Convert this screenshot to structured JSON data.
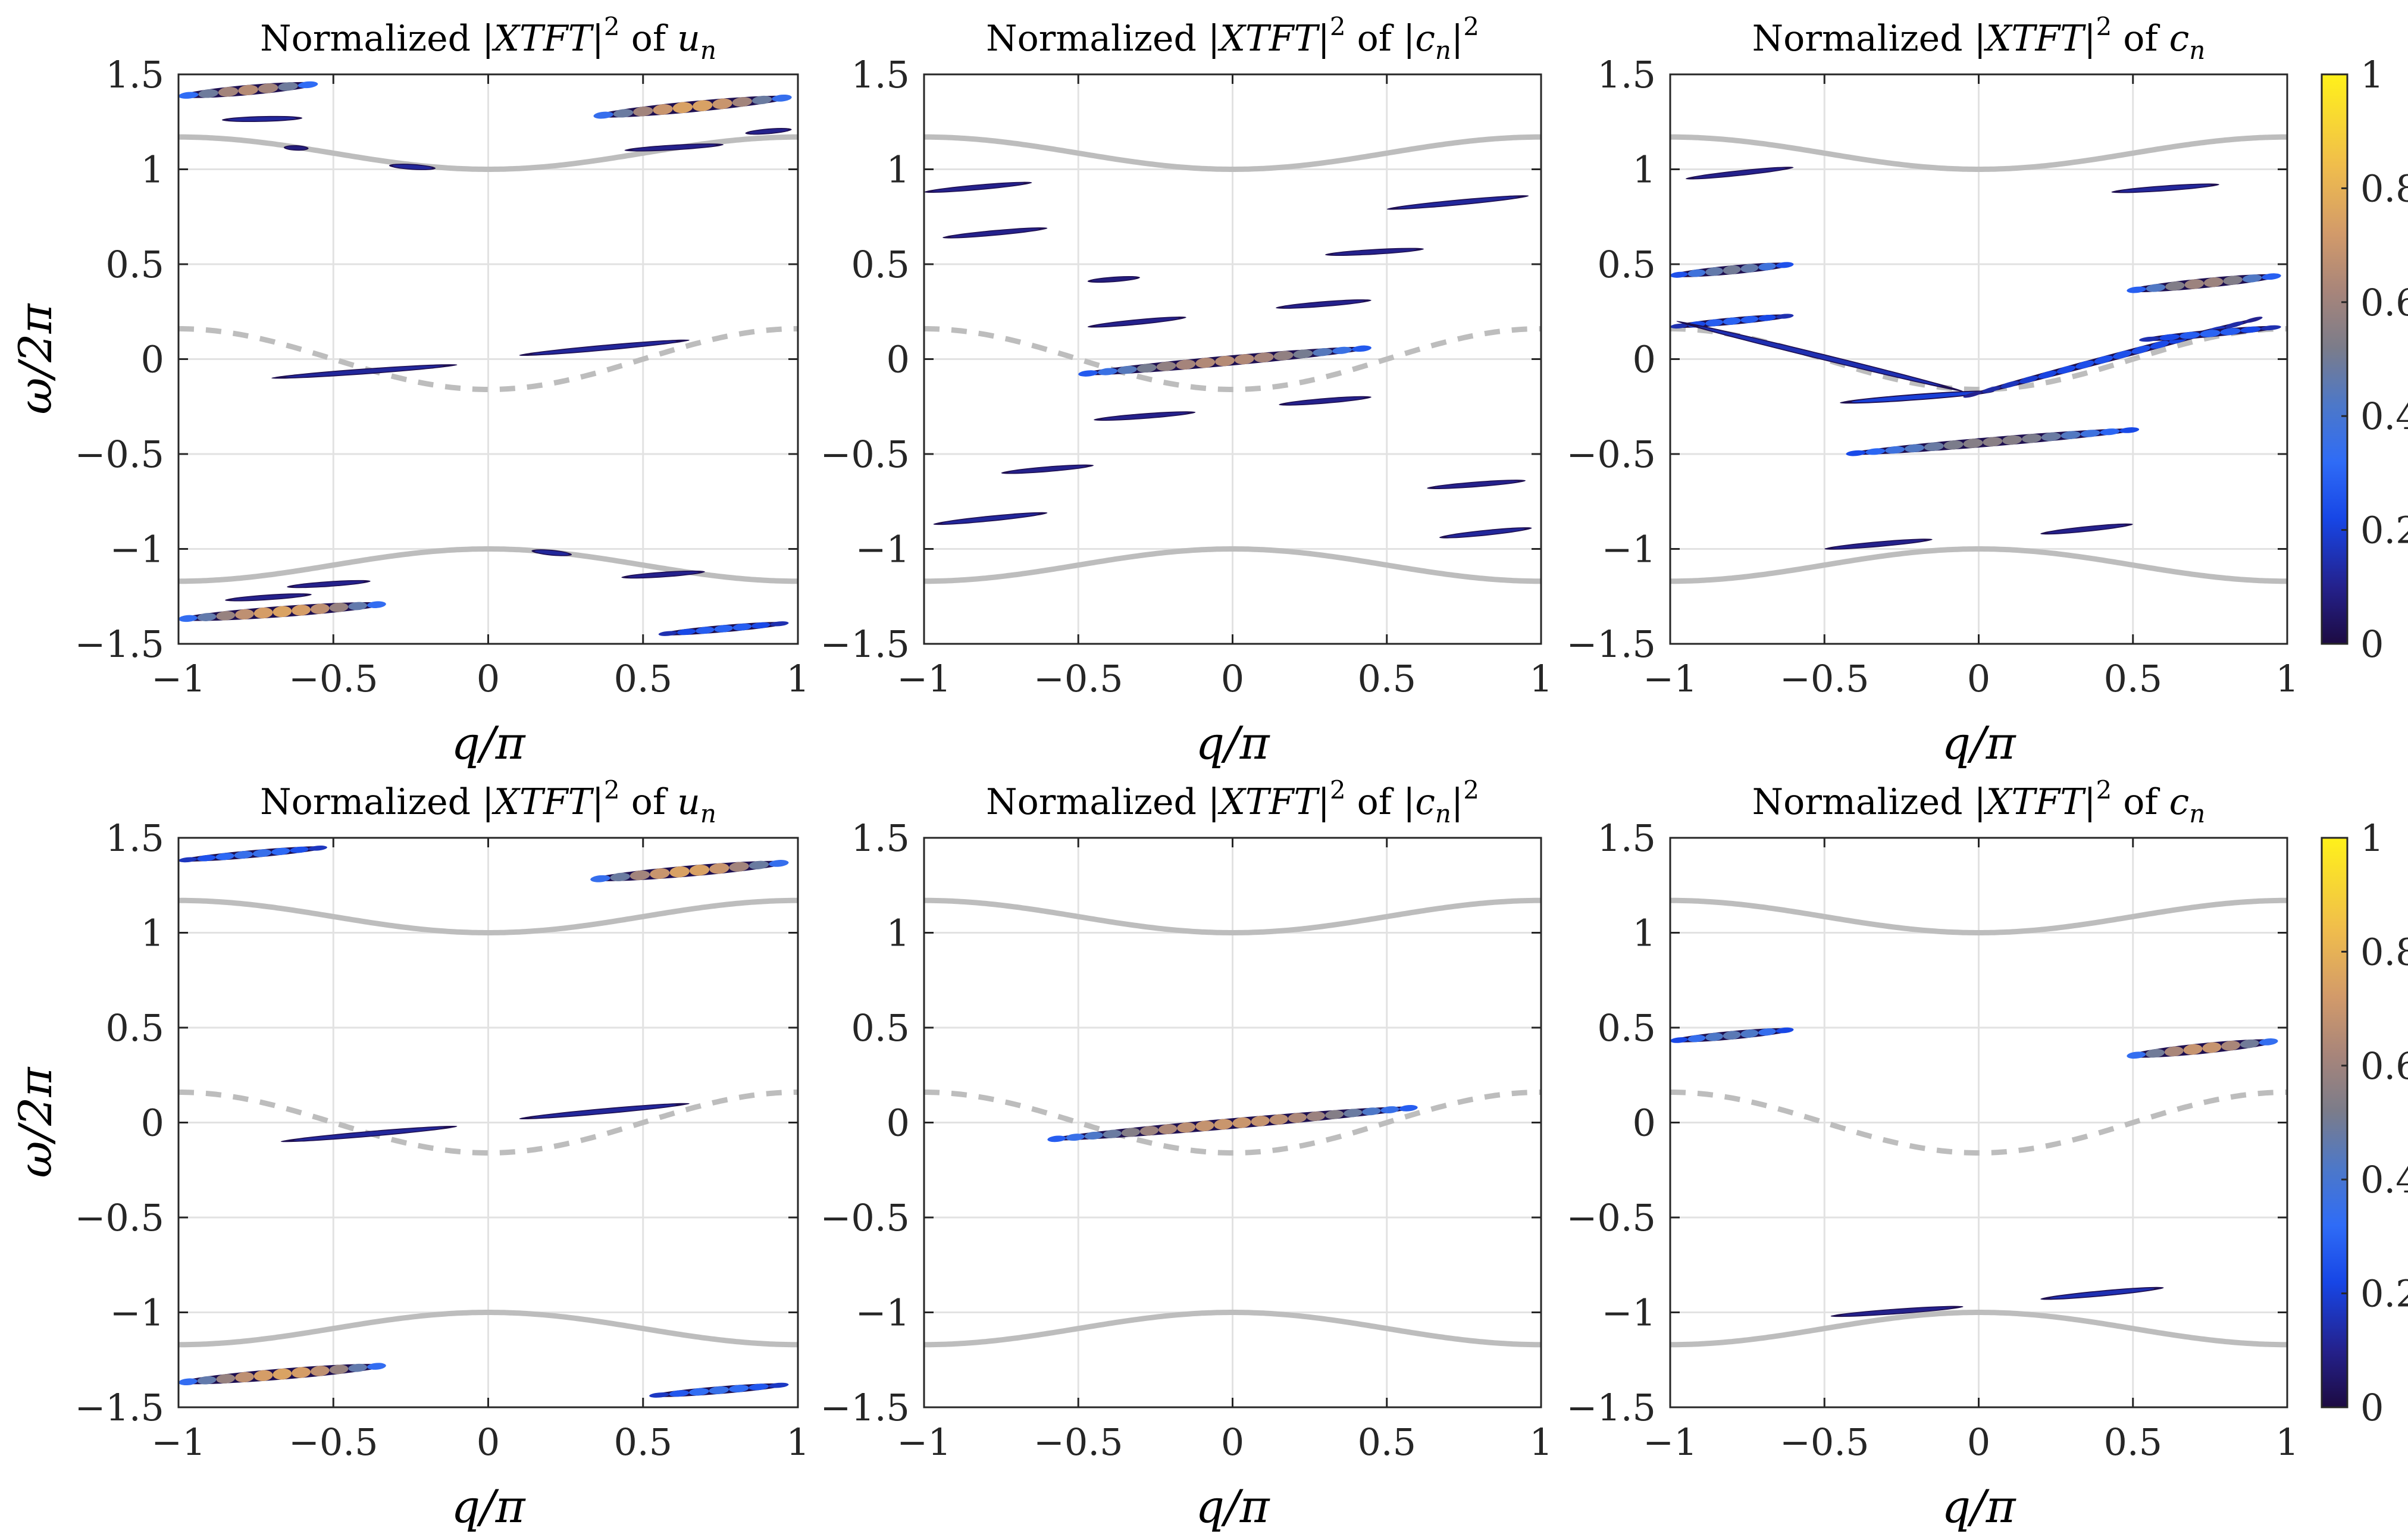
{
  "chart_data": [
    {
      "type": "heatmap",
      "row": 0,
      "col": 0,
      "title": {
        "prefix": "Normalized",
        "expr": "|XTFT|",
        "sup": "2",
        "of": "of",
        "var": "u",
        "sub": "n",
        "pre_bar": false
      },
      "xlabel": "q/π",
      "ylabel": "ω/2π",
      "xlim": [
        -1,
        1
      ],
      "ylim": [
        -1.5,
        1.5
      ],
      "xticks": [
        "−1",
        "−0.5",
        "0",
        "0.5",
        "1"
      ],
      "yticks": [
        "−1.5",
        "−1",
        "−0.5",
        "0",
        "0.5",
        "1",
        "1.5"
      ],
      "grid": true,
      "streaks": [
        {
          "x1": -1.0,
          "y1": 1.385,
          "x2": -0.55,
          "y2": 1.45,
          "i": 0.65
        },
        {
          "x1": -0.86,
          "y1": 1.26,
          "x2": -0.6,
          "y2": 1.27,
          "i": 0.12
        },
        {
          "x1": -0.66,
          "y1": 1.115,
          "x2": -0.58,
          "y2": 1.11,
          "i": 0.08
        },
        {
          "x1": -0.32,
          "y1": 1.02,
          "x2": -0.17,
          "y2": 1.005,
          "i": 0.12
        },
        {
          "x1": 0.34,
          "y1": 1.28,
          "x2": 0.98,
          "y2": 1.38,
          "i": 0.75
        },
        {
          "x1": 0.44,
          "y1": 1.1,
          "x2": 0.76,
          "y2": 1.13,
          "i": 0.1
        },
        {
          "x1": 0.83,
          "y1": 1.19,
          "x2": 0.98,
          "y2": 1.21,
          "i": 0.1
        },
        {
          "x1": -0.7,
          "y1": -0.1,
          "x2": -0.1,
          "y2": -0.03,
          "i": 0.12
        },
        {
          "x1": 0.1,
          "y1": 0.02,
          "x2": 0.65,
          "y2": 0.1,
          "i": 0.12
        },
        {
          "x1": -1.0,
          "y1": -1.37,
          "x2": -0.33,
          "y2": -1.29,
          "i": 0.75
        },
        {
          "x1": -0.65,
          "y1": -1.2,
          "x2": -0.38,
          "y2": -1.17,
          "i": 0.1
        },
        {
          "x1": -0.85,
          "y1": -1.27,
          "x2": -0.57,
          "y2": -1.24,
          "i": 0.1
        },
        {
          "x1": 0.14,
          "y1": -1.01,
          "x2": 0.27,
          "y2": -1.03,
          "i": 0.12
        },
        {
          "x1": 0.43,
          "y1": -1.15,
          "x2": 0.7,
          "y2": -1.12,
          "i": 0.1
        },
        {
          "x1": 0.55,
          "y1": -1.45,
          "x2": 0.97,
          "y2": -1.39,
          "i": 0.3
        }
      ]
    },
    {
      "type": "heatmap",
      "row": 0,
      "col": 1,
      "title": {
        "prefix": "Normalized",
        "expr": "|XTFT|",
        "sup": "2",
        "of": "of",
        "var": "c",
        "sub": "n",
        "pre_bar": true
      },
      "xlabel": "q/π",
      "ylabel": "",
      "xlim": [
        -1,
        1
      ],
      "ylim": [
        -1.5,
        1.5
      ],
      "xticks": [
        "−1",
        "−0.5",
        "0",
        "0.5",
        "1"
      ],
      "yticks": [
        "−1.5",
        "−1",
        "−0.5",
        "0",
        "0.5",
        "1",
        "1.5"
      ],
      "grid": true,
      "streaks": [
        {
          "x1": -1.0,
          "y1": 0.88,
          "x2": -0.65,
          "y2": 0.93,
          "i": 0.1
        },
        {
          "x1": -0.94,
          "y1": 0.64,
          "x2": -0.6,
          "y2": 0.69,
          "i": 0.1
        },
        {
          "x1": -0.47,
          "y1": 0.41,
          "x2": -0.3,
          "y2": 0.43,
          "i": 0.08
        },
        {
          "x1": -0.47,
          "y1": 0.17,
          "x2": -0.15,
          "y2": 0.22,
          "i": 0.1
        },
        {
          "x1": -0.5,
          "y1": -0.08,
          "x2": 0.45,
          "y2": 0.06,
          "i": 0.65
        },
        {
          "x1": -0.45,
          "y1": -0.32,
          "x2": -0.12,
          "y2": -0.28,
          "i": 0.1
        },
        {
          "x1": 0.15,
          "y1": -0.24,
          "x2": 0.45,
          "y2": -0.2,
          "i": 0.1
        },
        {
          "x1": 0.14,
          "y1": 0.27,
          "x2": 0.45,
          "y2": 0.31,
          "i": 0.1
        },
        {
          "x1": 0.3,
          "y1": 0.55,
          "x2": 0.62,
          "y2": 0.58,
          "i": 0.1
        },
        {
          "x1": 0.5,
          "y1": 0.79,
          "x2": 0.96,
          "y2": 0.86,
          "i": 0.12
        },
        {
          "x1": -0.75,
          "y1": -0.6,
          "x2": -0.45,
          "y2": -0.56,
          "i": 0.1
        },
        {
          "x1": -0.97,
          "y1": -0.87,
          "x2": -0.6,
          "y2": -0.81,
          "i": 0.12
        },
        {
          "x1": 0.63,
          "y1": -0.68,
          "x2": 0.95,
          "y2": -0.64,
          "i": 0.1
        },
        {
          "x1": 0.67,
          "y1": -0.94,
          "x2": 0.97,
          "y2": -0.89,
          "i": 0.12
        }
      ]
    },
    {
      "type": "heatmap",
      "row": 0,
      "col": 2,
      "title": {
        "prefix": "Normalized",
        "expr": "|XTFT|",
        "sup": "2",
        "of": "of",
        "var": "c",
        "sub": "n",
        "pre_bar": false
      },
      "xlabel": "q/π",
      "ylabel": "",
      "xlim": [
        -1,
        1
      ],
      "ylim": [
        -1.5,
        1.5
      ],
      "xticks": [
        "−1",
        "−0.5",
        "0",
        "0.5",
        "1"
      ],
      "yticks": [
        "−1.5",
        "−1",
        "−0.5",
        "0",
        "0.5",
        "1",
        "1.5"
      ],
      "grid": true,
      "colorbar": {
        "ticks": [
          "0",
          "0.2",
          "0.4",
          "0.6",
          "0.8",
          "1"
        ],
        "colormap": "parula-dark"
      },
      "streaks": [
        {
          "x1": -0.95,
          "y1": 0.95,
          "x2": -0.6,
          "y2": 1.01,
          "i": 0.1
        },
        {
          "x1": -1.0,
          "y1": 0.44,
          "x2": -0.6,
          "y2": 0.5,
          "i": 0.5
        },
        {
          "x1": -1.0,
          "y1": 0.17,
          "x2": -0.6,
          "y2": 0.23,
          "i": 0.3
        },
        {
          "x1": -0.98,
          "y1": 0.2,
          "x2": -0.05,
          "y2": -0.17,
          "i": 0.15
        },
        {
          "x1": -0.45,
          "y1": -0.23,
          "x2": 0.05,
          "y2": -0.17,
          "i": 0.2
        },
        {
          "x1": -0.05,
          "y1": -0.2,
          "x2": 0.92,
          "y2": 0.22,
          "i": 0.25
        },
        {
          "x1": -0.43,
          "y1": -0.5,
          "x2": 0.52,
          "y2": -0.37,
          "i": 0.55
        },
        {
          "x1": -0.5,
          "y1": -1.0,
          "x2": -0.15,
          "y2": -0.95,
          "i": 0.1
        },
        {
          "x1": 0.2,
          "y1": -0.92,
          "x2": 0.5,
          "y2": -0.87,
          "i": 0.1
        },
        {
          "x1": 0.43,
          "y1": 0.88,
          "x2": 0.78,
          "y2": 0.92,
          "i": 0.12
        },
        {
          "x1": 0.48,
          "y1": 0.36,
          "x2": 0.98,
          "y2": 0.44,
          "i": 0.6
        },
        {
          "x1": 0.52,
          "y1": 0.1,
          "x2": 0.98,
          "y2": 0.17,
          "i": 0.3
        }
      ]
    },
    {
      "type": "heatmap",
      "row": 1,
      "col": 0,
      "title": {
        "prefix": "Normalized",
        "expr": "|XTFT|",
        "sup": "2",
        "of": "of",
        "var": "u",
        "sub": "n",
        "pre_bar": false
      },
      "xlabel": "q/π",
      "ylabel": "ω/2π",
      "xlim": [
        -1,
        1
      ],
      "ylim": [
        -1.5,
        1.5
      ],
      "xticks": [
        "−1",
        "−0.5",
        "0",
        "0.5",
        "1"
      ],
      "yticks": [
        "−1.5",
        "−1",
        "−0.5",
        "0",
        "0.5",
        "1",
        "1.5"
      ],
      "grid": true,
      "streaks": [
        {
          "x1": -1.0,
          "y1": 1.38,
          "x2": -0.52,
          "y2": 1.45,
          "i": 0.35
        },
        {
          "x1": 0.33,
          "y1": 1.28,
          "x2": 0.97,
          "y2": 1.37,
          "i": 0.75
        },
        {
          "x1": -0.67,
          "y1": -0.1,
          "x2": -0.1,
          "y2": -0.02,
          "i": 0.12
        },
        {
          "x1": 0.1,
          "y1": 0.02,
          "x2": 0.65,
          "y2": 0.1,
          "i": 0.12
        },
        {
          "x1": -1.0,
          "y1": -1.37,
          "x2": -0.33,
          "y2": -1.28,
          "i": 0.75
        },
        {
          "x1": 0.52,
          "y1": -1.44,
          "x2": 0.97,
          "y2": -1.38,
          "i": 0.35
        }
      ]
    },
    {
      "type": "heatmap",
      "row": 1,
      "col": 1,
      "title": {
        "prefix": "Normalized",
        "expr": "|XTFT|",
        "sup": "2",
        "of": "of",
        "var": "c",
        "sub": "n",
        "pre_bar": true
      },
      "xlabel": "q/π",
      "ylabel": "",
      "xlim": [
        -1,
        1
      ],
      "ylim": [
        -1.5,
        1.5
      ],
      "xticks": [
        "−1",
        "−0.5",
        "0",
        "0.5",
        "1"
      ],
      "yticks": [
        "−1.5",
        "−1",
        "−0.5",
        "0",
        "0.5",
        "1",
        "1.5"
      ],
      "grid": true,
      "streaks": [
        {
          "x1": -0.6,
          "y1": -0.09,
          "x2": 0.6,
          "y2": 0.08,
          "i": 0.7
        }
      ]
    },
    {
      "type": "heatmap",
      "row": 1,
      "col": 2,
      "title": {
        "prefix": "Normalized",
        "expr": "|XTFT|",
        "sup": "2",
        "of": "of",
        "var": "c",
        "sub": "n",
        "pre_bar": false
      },
      "xlabel": "q/π",
      "ylabel": "",
      "xlim": [
        -1,
        1
      ],
      "ylim": [
        -1.5,
        1.5
      ],
      "xticks": [
        "−1",
        "−0.5",
        "0",
        "0.5",
        "1"
      ],
      "yticks": [
        "−1.5",
        "−1",
        "−0.5",
        "0",
        "0.5",
        "1",
        "1.5"
      ],
      "grid": true,
      "colorbar": {
        "ticks": [
          "0",
          "0.2",
          "0.4",
          "0.6",
          "0.8",
          "1"
        ],
        "colormap": "parula-dark"
      },
      "streaks": [
        {
          "x1": -1.0,
          "y1": 0.43,
          "x2": -0.6,
          "y2": 0.49,
          "i": 0.45
        },
        {
          "x1": 0.48,
          "y1": 0.35,
          "x2": 0.97,
          "y2": 0.43,
          "i": 0.7
        },
        {
          "x1": -0.48,
          "y1": -1.02,
          "x2": -0.05,
          "y2": -0.97,
          "i": 0.1
        },
        {
          "x1": 0.2,
          "y1": -0.93,
          "x2": 0.6,
          "y2": -0.87,
          "i": 0.15
        }
      ]
    }
  ],
  "reference_curves": {
    "solid_upper": "1 + 0.085(1 - cos πq)",
    "solid_lower": "-(1 + 0.085(1 - cos πq))",
    "dashed_middle": "0.16 cos πq, wait: -0.16 at q=0, +0.16 at q=±1",
    "color": "#bdbdbd"
  }
}
